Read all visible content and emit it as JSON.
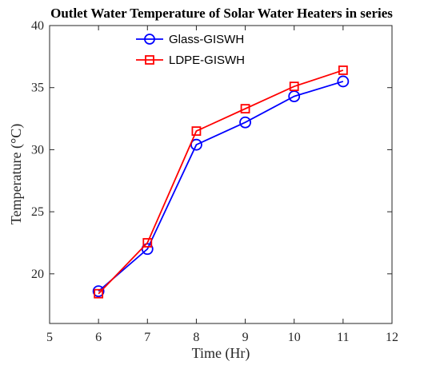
{
  "chart_data": {
    "type": "line",
    "title": "Outlet Water Temperature of Solar Water Heaters in series",
    "xlabel": "Time (Hr)",
    "ylabel": "Temperature (°C)",
    "xlim": [
      5,
      12
    ],
    "ylim": [
      16,
      40
    ],
    "x_ticks": [
      "5",
      "6",
      "7",
      "8",
      "9",
      "10",
      "11",
      "12"
    ],
    "y_ticks": [
      "20",
      "25",
      "30",
      "35",
      "40"
    ],
    "grid": false,
    "legend_position": "top-center",
    "x": [
      6,
      7,
      8,
      9,
      10,
      11
    ],
    "series": [
      {
        "name": "Glass-GISWH",
        "color": "#0000ff",
        "marker": "circle",
        "values": [
          18.6,
          22.0,
          30.4,
          32.2,
          34.3,
          35.5
        ]
      },
      {
        "name": "LDPE-GISWH",
        "color": "#ff0000",
        "marker": "square",
        "values": [
          18.4,
          22.5,
          31.5,
          33.3,
          35.1,
          36.4
        ]
      }
    ]
  }
}
